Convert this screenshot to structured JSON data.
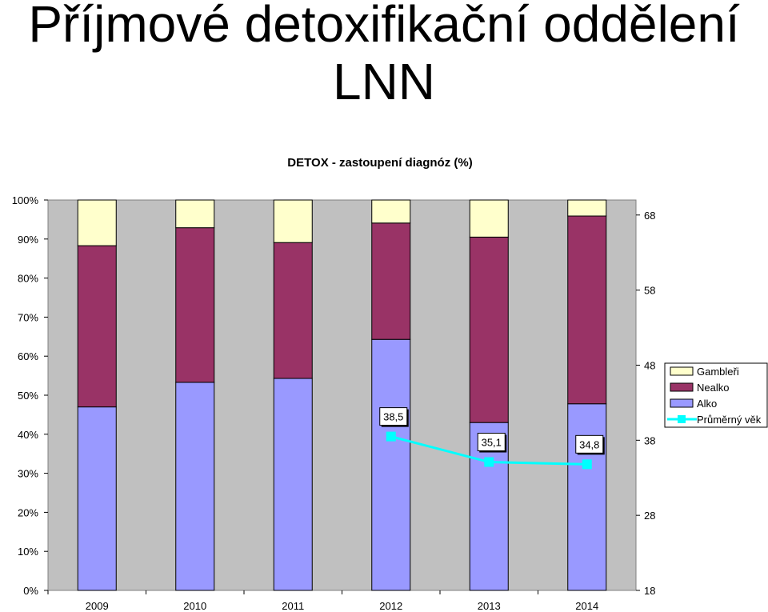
{
  "slide": {
    "title_line1": "Příjmové detoxifikační oddělení",
    "title_line2": "LNN"
  },
  "chart_data": {
    "type": "bar",
    "stacked": true,
    "percent_stacked": true,
    "title": "DETOX - zastoupení diagnóz (%)",
    "categories": [
      "2009",
      "2010",
      "2011",
      "2012",
      "2013",
      "2014"
    ],
    "series": [
      {
        "name": "Alko",
        "color": "#9999ff",
        "values": [
          47,
          53.3,
          54.3,
          64.3,
          43,
          47.8
        ]
      },
      {
        "name": "Nealko",
        "color": "#993366",
        "values": [
          41.3,
          39.6,
          34.8,
          29.8,
          47.5,
          48.1
        ]
      },
      {
        "name": "Gambleři",
        "color": "#ffffcc",
        "values": [
          11.7,
          7.1,
          10.9,
          5.9,
          9.5,
          4.1
        ]
      }
    ],
    "line_series": {
      "name": "Průměrný věk",
      "color": "#00ffff",
      "axis": "secondary",
      "values": [
        null,
        null,
        null,
        38.5,
        35.1,
        34.8
      ],
      "labels": [
        "",
        "",
        "",
        "38,5",
        "35,1",
        "34,8"
      ]
    },
    "y_ticks": [
      "0%",
      "10%",
      "20%",
      "30%",
      "40%",
      "50%",
      "60%",
      "70%",
      "80%",
      "90%",
      "100%"
    ],
    "ylim": [
      0,
      100
    ],
    "y2_ticks": [
      "18",
      "28",
      "38",
      "48",
      "58",
      "68"
    ],
    "y2lim": [
      18,
      70
    ],
    "legend_position": "right",
    "plot_background": "#c0c0c0",
    "grid": false
  }
}
